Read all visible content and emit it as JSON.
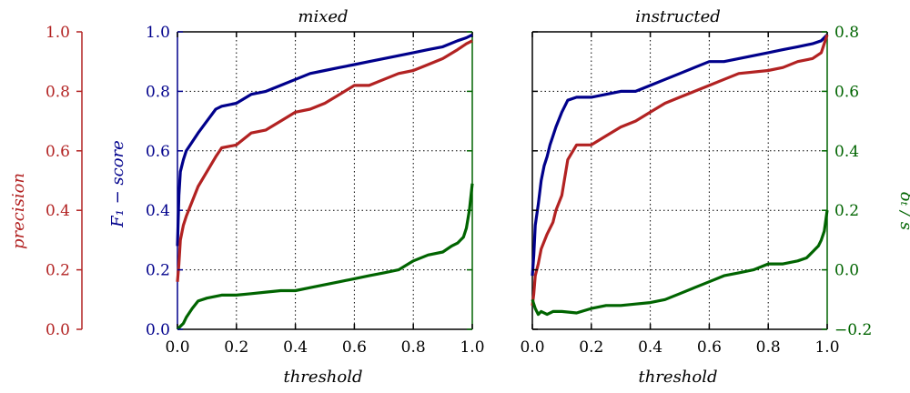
{
  "chart_data": [
    {
      "type": "line",
      "title": "mixed",
      "xlabel": "threshold",
      "xlim": [
        0,
        1
      ],
      "grid": true,
      "axes": {
        "precision": {
          "label": "precision",
          "ylim": [
            0,
            1
          ],
          "ticks": [
            "0.0",
            "0.2",
            "0.4",
            "0.6",
            "0.8",
            "1.0"
          ],
          "color": "#b22222"
        },
        "f1": {
          "label": "F₁ − score",
          "ylim": [
            0,
            1
          ],
          "ticks": [
            "0.0",
            "0.2",
            "0.4",
            "0.6",
            "0.8",
            "1.0"
          ],
          "color": "#00008b"
        },
        "delta": {
          "label": "δ̅ₜ / s",
          "ylim": [
            -0.2,
            0.8
          ],
          "ticks": [
            "−0.2",
            "0.0",
            "0.2",
            "0.4",
            "0.6",
            "0.8"
          ],
          "color": "#006400"
        }
      },
      "x_ticks": [
        "0.0",
        "0.2",
        "0.4",
        "0.6",
        "0.8",
        "1.0"
      ],
      "series": [
        {
          "axis": "f1",
          "color": "#00008b",
          "x": [
            0.0,
            0.005,
            0.01,
            0.02,
            0.03,
            0.05,
            0.07,
            0.1,
            0.13,
            0.15,
            0.2,
            0.25,
            0.3,
            0.35,
            0.4,
            0.45,
            0.5,
            0.55,
            0.6,
            0.65,
            0.7,
            0.75,
            0.8,
            0.85,
            0.9,
            0.95,
            0.98,
            1.0
          ],
          "y": [
            0.28,
            0.45,
            0.53,
            0.57,
            0.6,
            0.63,
            0.66,
            0.7,
            0.74,
            0.75,
            0.76,
            0.79,
            0.8,
            0.82,
            0.84,
            0.86,
            0.87,
            0.88,
            0.89,
            0.9,
            0.91,
            0.92,
            0.93,
            0.94,
            0.95,
            0.97,
            0.98,
            0.99
          ]
        },
        {
          "axis": "precision",
          "color": "#b22222",
          "x": [
            0.0,
            0.005,
            0.01,
            0.02,
            0.03,
            0.05,
            0.07,
            0.1,
            0.13,
            0.15,
            0.2,
            0.25,
            0.3,
            0.35,
            0.4,
            0.45,
            0.5,
            0.55,
            0.6,
            0.65,
            0.7,
            0.75,
            0.8,
            0.85,
            0.9,
            0.95,
            0.98,
            1.0
          ],
          "y": [
            0.16,
            0.22,
            0.3,
            0.35,
            0.38,
            0.43,
            0.48,
            0.53,
            0.58,
            0.61,
            0.62,
            0.66,
            0.67,
            0.7,
            0.73,
            0.74,
            0.76,
            0.79,
            0.82,
            0.82,
            0.84,
            0.86,
            0.87,
            0.89,
            0.91,
            0.94,
            0.96,
            0.97
          ]
        },
        {
          "axis": "delta",
          "color": "#006400",
          "x": [
            0.0,
            0.01,
            0.02,
            0.03,
            0.05,
            0.07,
            0.1,
            0.15,
            0.2,
            0.25,
            0.3,
            0.35,
            0.4,
            0.45,
            0.5,
            0.55,
            0.6,
            0.65,
            0.7,
            0.75,
            0.8,
            0.85,
            0.9,
            0.93,
            0.95,
            0.97,
            0.98,
            0.99,
            1.0
          ],
          "y": [
            -0.2,
            -0.19,
            -0.18,
            -0.16,
            -0.13,
            -0.105,
            -0.095,
            -0.085,
            -0.085,
            -0.08,
            -0.075,
            -0.07,
            -0.07,
            -0.06,
            -0.05,
            -0.04,
            -0.03,
            -0.02,
            -0.01,
            0.0,
            0.03,
            0.05,
            0.06,
            0.08,
            0.09,
            0.11,
            0.14,
            0.2,
            0.29
          ]
        }
      ]
    },
    {
      "type": "line",
      "title": "instructed",
      "xlabel": "threshold",
      "xlim": [
        0,
        1
      ],
      "grid": true,
      "axes": {
        "f1": {
          "ylim": [
            0,
            1
          ],
          "color": "#00008b"
        },
        "precision": {
          "ylim": [
            0,
            1
          ],
          "color": "#b22222"
        },
        "delta": {
          "label": "δ̅ₜ / s",
          "ylim": [
            -0.2,
            0.8
          ],
          "ticks": [
            "−0.2",
            "0.0",
            "0.2",
            "0.4",
            "0.6",
            "0.8"
          ],
          "color": "#006400"
        }
      },
      "x_ticks": [
        "0.0",
        "0.2",
        "0.4",
        "0.6",
        "0.8",
        "1.0"
      ],
      "series": [
        {
          "axis": "f1",
          "color": "#00008b",
          "x": [
            0.0,
            0.005,
            0.01,
            0.02,
            0.03,
            0.04,
            0.05,
            0.06,
            0.07,
            0.08,
            0.1,
            0.12,
            0.15,
            0.2,
            0.25,
            0.3,
            0.35,
            0.4,
            0.45,
            0.5,
            0.55,
            0.6,
            0.65,
            0.7,
            0.8,
            0.85,
            0.9,
            0.95,
            0.98,
            1.0
          ],
          "y": [
            0.18,
            0.25,
            0.35,
            0.42,
            0.5,
            0.55,
            0.58,
            0.62,
            0.65,
            0.68,
            0.73,
            0.77,
            0.78,
            0.78,
            0.79,
            0.8,
            0.8,
            0.82,
            0.84,
            0.86,
            0.88,
            0.9,
            0.9,
            0.91,
            0.93,
            0.94,
            0.95,
            0.96,
            0.97,
            0.99
          ]
        },
        {
          "axis": "precision",
          "color": "#b22222",
          "x": [
            0.0,
            0.005,
            0.01,
            0.02,
            0.03,
            0.05,
            0.07,
            0.08,
            0.1,
            0.12,
            0.15,
            0.2,
            0.25,
            0.3,
            0.35,
            0.4,
            0.45,
            0.5,
            0.55,
            0.6,
            0.65,
            0.7,
            0.8,
            0.85,
            0.9,
            0.95,
            0.98,
            1.0
          ],
          "y": [
            0.08,
            0.12,
            0.18,
            0.22,
            0.27,
            0.32,
            0.36,
            0.4,
            0.45,
            0.57,
            0.62,
            0.62,
            0.65,
            0.68,
            0.7,
            0.73,
            0.76,
            0.78,
            0.8,
            0.82,
            0.84,
            0.86,
            0.87,
            0.88,
            0.9,
            0.91,
            0.93,
            0.99
          ]
        },
        {
          "axis": "delta",
          "color": "#006400",
          "x": [
            0.0,
            0.01,
            0.02,
            0.03,
            0.05,
            0.07,
            0.1,
            0.15,
            0.2,
            0.25,
            0.3,
            0.35,
            0.4,
            0.45,
            0.5,
            0.55,
            0.6,
            0.65,
            0.7,
            0.75,
            0.8,
            0.85,
            0.9,
            0.93,
            0.95,
            0.97,
            0.98,
            0.99,
            1.0
          ],
          "y": [
            -0.1,
            -0.13,
            -0.15,
            -0.14,
            -0.15,
            -0.14,
            -0.14,
            -0.145,
            -0.13,
            -0.12,
            -0.12,
            -0.115,
            -0.11,
            -0.1,
            -0.08,
            -0.06,
            -0.04,
            -0.02,
            -0.01,
            0.0,
            0.02,
            0.02,
            0.03,
            0.04,
            0.06,
            0.08,
            0.1,
            0.13,
            0.2
          ]
        }
      ]
    }
  ]
}
